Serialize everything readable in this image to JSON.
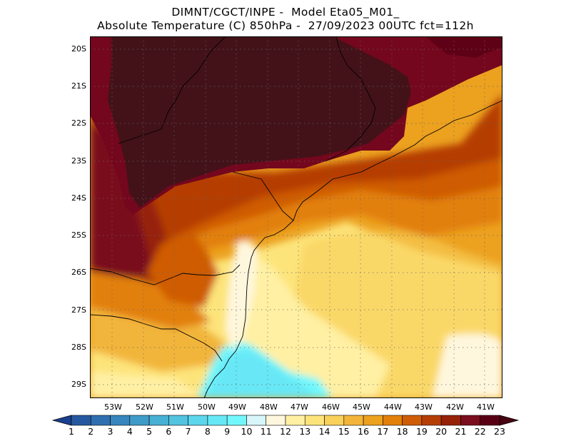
{
  "header": {
    "line1": "DIMNT/CGCT/INPE -  Model Eta05_M01_",
    "line2": "Absolute Temperature (C) 850hPa -  27/09/2023 00UTC fct=112h"
  },
  "axes": {
    "lat_labels": [
      "20S",
      "21S",
      "22S",
      "23S",
      "24S",
      "25S",
      "26S",
      "27S",
      "28S",
      "29S"
    ],
    "lon_labels": [
      "53W",
      "52W",
      "51W",
      "50W",
      "49W",
      "48W",
      "47W",
      "46W",
      "45W",
      "44W",
      "43W",
      "42W",
      "41W"
    ]
  },
  "colorbar": {
    "labels": [
      "1",
      "2",
      "3",
      "4",
      "5",
      "6",
      "7",
      "8",
      "9",
      "10",
      "11",
      "12",
      "13",
      "14",
      "15",
      "16",
      "17",
      "18",
      "19",
      "20",
      "21",
      "22",
      "23"
    ],
    "colors": [
      "#1b3f8f",
      "#25589e",
      "#2f6faf",
      "#3786bd",
      "#3f9bc8",
      "#47b0d4",
      "#52c3e0",
      "#5cd6ec",
      "#67e8f6",
      "#72f8fc",
      "#d8f6fa",
      "#fff7dd",
      "#fff0a3",
      "#fde47a",
      "#f8d05a",
      "#f2b53a",
      "#eca11f",
      "#e2800b",
      "#cf5c06",
      "#b53e05",
      "#962208",
      "#7a0d1e",
      "#5a0015"
    ],
    "under_color": "#1b3f8f",
    "over_color": "#480411"
  },
  "palette": {
    "land_hot": "#431219",
    "crimson": "#74071d",
    "cold_cyan": "#66ecf8",
    "pale": "#fff7dd"
  }
}
